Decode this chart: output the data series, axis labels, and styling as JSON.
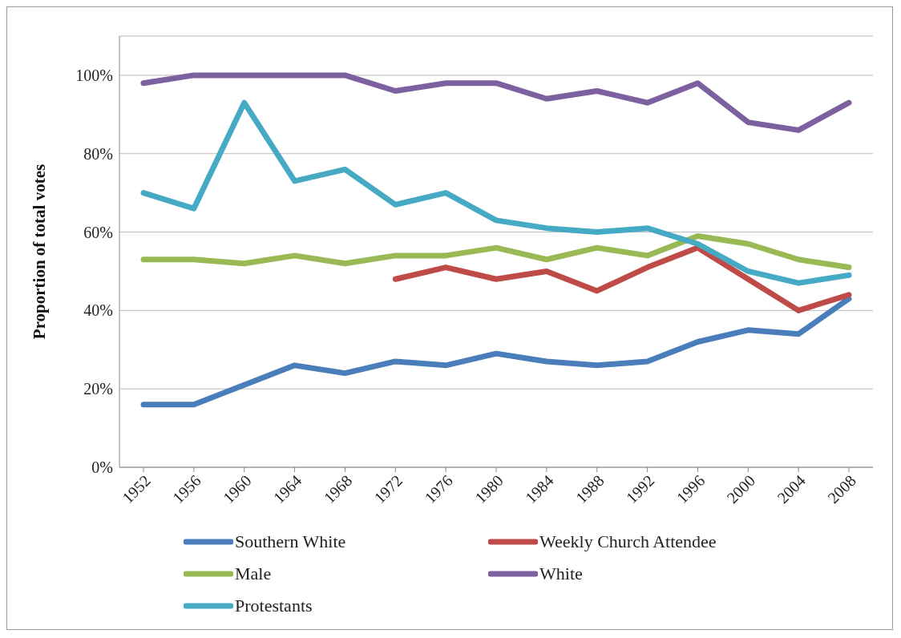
{
  "chart_data": {
    "type": "line",
    "ylabel": "Proportion of total votes",
    "categories": [
      "1952",
      "1956",
      "1960",
      "1964",
      "1968",
      "1972",
      "1976",
      "1980",
      "1984",
      "1988",
      "1992",
      "1996",
      "2000",
      "2004",
      "2008"
    ],
    "series": [
      {
        "name": "Southern White",
        "color": "#4a7ebb",
        "values": [
          16,
          16,
          21,
          26,
          24,
          27,
          26,
          29,
          27,
          26,
          27,
          32,
          35,
          34,
          43
        ]
      },
      {
        "name": "Weekly Church Attendee",
        "color": "#be4b48",
        "values": [
          null,
          null,
          null,
          null,
          null,
          48,
          51,
          48,
          50,
          45,
          51,
          56,
          48,
          40,
          44
        ]
      },
      {
        "name": "Male",
        "color": "#98b954",
        "values": [
          53,
          53,
          52,
          54,
          52,
          54,
          54,
          56,
          53,
          56,
          54,
          59,
          57,
          53,
          51
        ]
      },
      {
        "name": "White",
        "color": "#7d60a0",
        "values": [
          98,
          100,
          100,
          100,
          100,
          96,
          98,
          98,
          94,
          96,
          93,
          98,
          88,
          86,
          93
        ]
      },
      {
        "name": "Protestants",
        "color": "#46aac5",
        "values": [
          70,
          66,
          93,
          73,
          76,
          67,
          70,
          63,
          61,
          60,
          61,
          57,
          50,
          47,
          49
        ]
      }
    ],
    "ylim": [
      0,
      110
    ],
    "yticks": [
      {
        "value": 0,
        "label": "0%"
      },
      {
        "value": 20,
        "label": "20%"
      },
      {
        "value": 40,
        "label": "40%"
      },
      {
        "value": 60,
        "label": "60%"
      },
      {
        "value": 80,
        "label": "80%"
      },
      {
        "value": 100,
        "label": "100%"
      }
    ],
    "grid": "y",
    "legend": "bottom",
    "marker": "none",
    "line_style": "solid"
  }
}
